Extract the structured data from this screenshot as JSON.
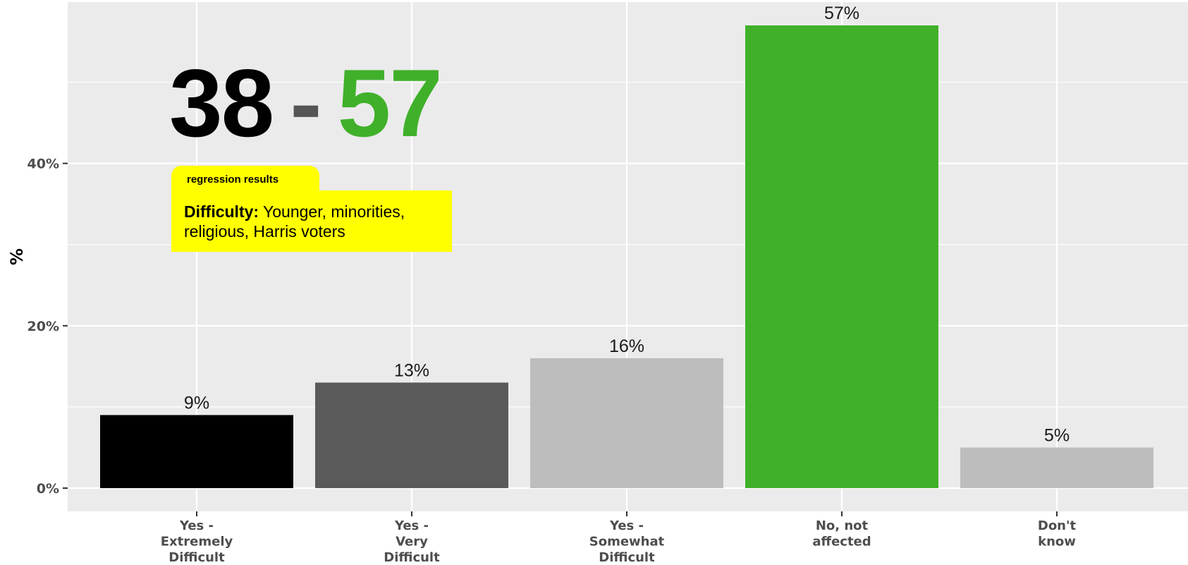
{
  "chart_data": {
    "type": "bar",
    "categories": [
      [
        "Yes -",
        "Extremely",
        "Difficult"
      ],
      [
        "Yes -",
        "Very",
        "Difficult"
      ],
      [
        "Yes -",
        "Somewhat",
        "Difficult"
      ],
      [
        "No, not",
        "affected"
      ],
      [
        "Don't",
        "know"
      ]
    ],
    "values": [
      9,
      13,
      16,
      57,
      5
    ],
    "data_labels": [
      "9%",
      "13%",
      "16%",
      "57%",
      "5%"
    ],
    "colors": [
      "#000000",
      "#5a5a5a",
      "#bdbdbd",
      "#40b02a",
      "#bdbdbd"
    ],
    "ylabel": "%",
    "xlabel": "",
    "ylim": [
      0,
      59.5
    ],
    "yticks": [
      0,
      20,
      40
    ],
    "ytick_labels": [
      "0%",
      "20%",
      "40%"
    ],
    "grid": true,
    "panel_background": "#ebebeb"
  },
  "annotation": {
    "score_left": "38",
    "score_sep": "-",
    "score_right": "57",
    "score_left_color": "#000000",
    "score_right_color": "#40b02a",
    "tab_label": "regression results",
    "box_bold": "Difficulty:",
    "box_text": " Younger, minorities, religious, Harris voters"
  }
}
